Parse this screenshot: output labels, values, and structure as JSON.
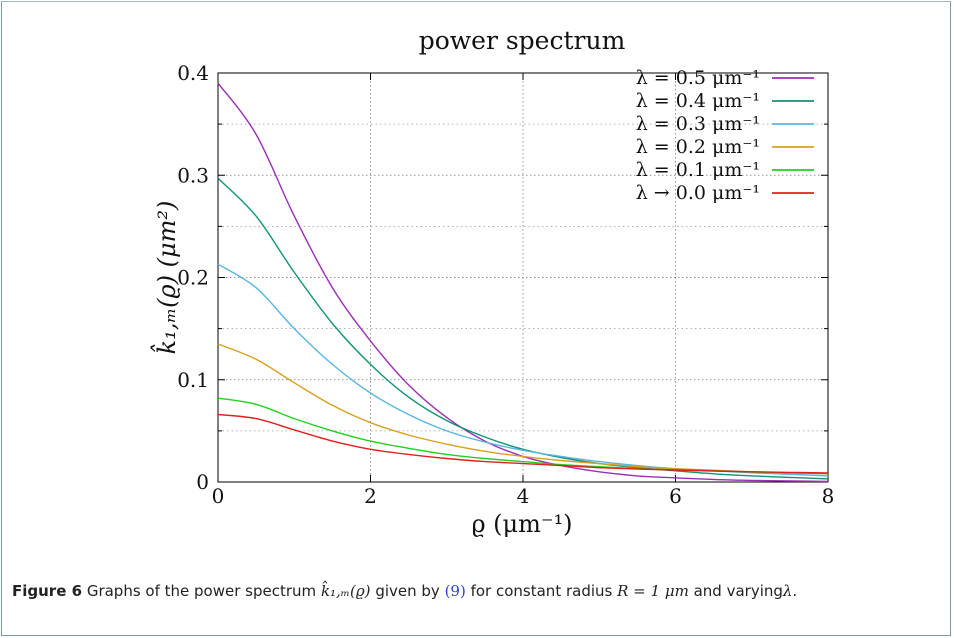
{
  "chart_data": {
    "type": "line",
    "title": "power spectrum",
    "xlabel": "ϱ (μm⁻¹)",
    "ylabel": "k̂₁,ₘ(ϱ) (μm²)",
    "xlim": [
      0,
      8
    ],
    "ylim": [
      0,
      0.4
    ],
    "x_ticks": [
      "0",
      "2",
      "4",
      "6",
      "8"
    ],
    "y_ticks": [
      "0",
      "0.1",
      "0.2",
      "0.3",
      "0.4"
    ],
    "grid": true,
    "legend_position": "top-right",
    "x": [
      0,
      0.5,
      1,
      1.5,
      2,
      2.5,
      3,
      3.5,
      4,
      4.5,
      5,
      5.5,
      6,
      6.5,
      7,
      7.5,
      8
    ],
    "series": [
      {
        "name": "λ = 0.5 μm⁻¹",
        "color": "#9b2fb5",
        "values": [
          0.39,
          0.34,
          0.26,
          0.19,
          0.138,
          0.095,
          0.063,
          0.04,
          0.025,
          0.016,
          0.01,
          0.006,
          0.004,
          0.0025,
          0.0016,
          0.001,
          0.0006
        ]
      },
      {
        "name": "λ = 0.4 μm⁻¹",
        "color": "#0f9475",
        "values": [
          0.297,
          0.26,
          0.205,
          0.155,
          0.115,
          0.083,
          0.06,
          0.044,
          0.032,
          0.024,
          0.018,
          0.014,
          0.011,
          0.008,
          0.006,
          0.0045,
          0.003
        ]
      },
      {
        "name": "λ = 0.3 μm⁻¹",
        "color": "#5ab6df",
        "values": [
          0.213,
          0.19,
          0.15,
          0.115,
          0.087,
          0.066,
          0.05,
          0.039,
          0.031,
          0.025,
          0.02,
          0.016,
          0.013,
          0.011,
          0.009,
          0.0075,
          0.006
        ]
      },
      {
        "name": "λ = 0.2 μm⁻¹",
        "color": "#d9a020",
        "values": [
          0.135,
          0.12,
          0.097,
          0.075,
          0.058,
          0.046,
          0.037,
          0.03,
          0.025,
          0.021,
          0.018,
          0.015,
          0.013,
          0.0115,
          0.01,
          0.009,
          0.008
        ]
      },
      {
        "name": "λ = 0.1 μm⁻¹",
        "color": "#1ed11e",
        "values": [
          0.082,
          0.076,
          0.062,
          0.05,
          0.04,
          0.033,
          0.027,
          0.023,
          0.02,
          0.017,
          0.015,
          0.013,
          0.012,
          0.011,
          0.0098,
          0.0089,
          0.0082
        ]
      },
      {
        "name": "λ → 0.0 μm⁻¹",
        "color": "#e0201c",
        "values": [
          0.066,
          0.062,
          0.051,
          0.04,
          0.032,
          0.027,
          0.023,
          0.02,
          0.018,
          0.016,
          0.014,
          0.0127,
          0.0117,
          0.0108,
          0.01,
          0.0094,
          0.0088
        ]
      }
    ]
  },
  "caption": {
    "label": "Figure 6",
    "text_1": "Graphs of the power spectrum",
    "math_1": "k̂₁,ₘ(ϱ)",
    "text_2": "given by",
    "ref": "(9)",
    "text_3": "for constant radius",
    "math_2": "R = 1 μm",
    "text_4": "and varying",
    "math_3": "λ",
    "text_5": "."
  }
}
